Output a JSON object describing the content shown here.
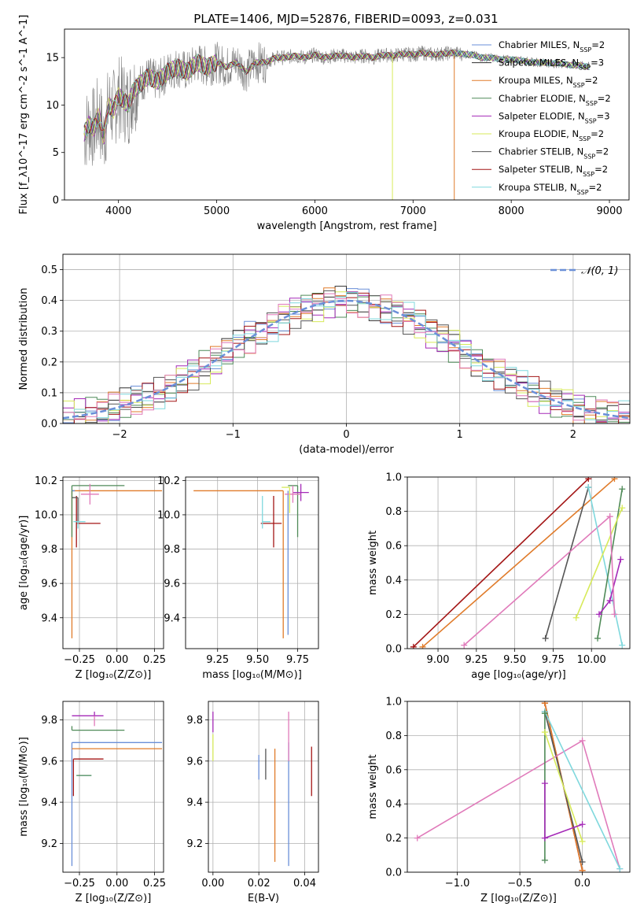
{
  "figure": {
    "title": "PLATE=1406, MJD=52876, FIBERID=0093, z=0.031"
  },
  "colors": {
    "chabrier_miles": "#6a8fd8",
    "salpeter_miles": "#2e2e2e",
    "kroupa_miles": "#e07b2a",
    "chabrier_elodie": "#4f8a58",
    "salpeter_elodie": "#a52ab8",
    "kroupa_elodie": "#d7ea5a",
    "chabrier_stelib": "#555555",
    "salpeter_stelib": "#a31515",
    "kroupa_stelib": "#7fd8dd",
    "pink": "#e07aba",
    "normal": "#6a8fd8"
  },
  "chart_data": [
    {
      "id": "spectrum",
      "type": "line",
      "xlabel": "wavelength [Angstrom, rest frame]",
      "ylabel": "Flux [f_λ10^-17 erg cm^-2 s^-1 A^-1]",
      "xlim": [
        3450,
        9200
      ],
      "ylim": [
        0,
        18
      ],
      "xticks": [
        4000,
        5000,
        6000,
        7000,
        8000,
        9000
      ],
      "yticks": [
        0,
        5,
        10,
        15
      ],
      "grid": false,
      "legend_position": "top-right",
      "legend": [
        {
          "label": "Chabrier MILES, N",
          "sub": "SSP",
          "tail": "=2",
          "color": "#6a8fd8"
        },
        {
          "label": "Salpeter MILES, N",
          "sub": "SSP",
          "tail": "=3",
          "color": "#2e2e2e"
        },
        {
          "label": "Kroupa MILES, N",
          "sub": "SSP",
          "tail": "=2",
          "color": "#e07b2a"
        },
        {
          "label": "Chabrier ELODIE, N",
          "sub": "SSP",
          "tail": "=2",
          "color": "#4f8a58"
        },
        {
          "label": "Salpeter ELODIE, N",
          "sub": "SSP",
          "tail": "=3",
          "color": "#a52ab8"
        },
        {
          "label": "Kroupa ELODIE, N",
          "sub": "SSP",
          "tail": "=2",
          "color": "#d7ea5a"
        },
        {
          "label": "Chabrier STELIB, N",
          "sub": "SSP",
          "tail": "=2",
          "color": "#555555"
        },
        {
          "label": "Salpeter STELIB, N",
          "sub": "SSP",
          "tail": "=2",
          "color": "#a31515"
        },
        {
          "label": "Kroupa STELIB, N",
          "sub": "SSP",
          "tail": "=2",
          "color": "#7fd8dd"
        }
      ],
      "data_x": [
        3650,
        3700,
        3750,
        3800,
        3850,
        3900,
        3950,
        4000,
        4050,
        4100,
        4150,
        4200,
        4300,
        4400,
        4500,
        4600,
        4700,
        4800,
        4900,
        5000,
        5100,
        5200,
        5300,
        5400,
        5500,
        5600,
        5700,
        5800,
        5900,
        6000,
        6100,
        6200,
        6300,
        6400,
        6500,
        6600,
        6700,
        6800,
        6900,
        7000,
        7100,
        7200,
        7300,
        7400,
        7500,
        7600,
        7700,
        7800,
        7900,
        8000,
        8100,
        8200,
        8300,
        8400,
        8500,
        8600,
        8700,
        8800
      ],
      "data_y": [
        7.0,
        8.0,
        7.5,
        9.0,
        6.5,
        10.0,
        9.5,
        11.0,
        10.5,
        10.0,
        11.5,
        12.0,
        13.0,
        12.5,
        13.5,
        14.0,
        13.5,
        14.5,
        14.0,
        14.5,
        14.0,
        14.5,
        13.5,
        14.5,
        14.5,
        15.0,
        15.0,
        15.2,
        15.0,
        15.3,
        15.0,
        15.2,
        15.2,
        15.0,
        15.2,
        15.0,
        15.3,
        15.2,
        15.4,
        15.3,
        15.5,
        15.3,
        15.4,
        15.5,
        15.4,
        15.3,
        15.0,
        15.0,
        14.8,
        14.8,
        14.7,
        14.5,
        14.5,
        14.4,
        14.4,
        14.2,
        14.2,
        14.0
      ]
    },
    {
      "id": "residuals",
      "type": "bar",
      "xlabel": "(data-model)/error",
      "ylabel": "Normed distribution",
      "xlim": [
        -2.5,
        2.5
      ],
      "ylim": [
        0,
        0.55
      ],
      "xticks": [
        -2,
        -1,
        0,
        1,
        2
      ],
      "xtick_labels": [
        "−2",
        "−1",
        "0",
        "1",
        "2"
      ],
      "yticks": [
        0.0,
        0.1,
        0.2,
        0.3,
        0.4,
        0.5
      ],
      "ytick_labels": [
        "0.0",
        "0.1",
        "0.2",
        "0.3",
        "0.4",
        "0.5"
      ],
      "grid": true,
      "bin_width": 0.1,
      "legend_position": "top-right",
      "legend": [
        {
          "label": "𝒩(0, 1)",
          "color": "#6a8fd8"
        }
      ],
      "series": [
        {
          "color": "#6a8fd8",
          "offset": 0.0
        },
        {
          "color": "#2e2e2e",
          "offset": 0.01
        },
        {
          "color": "#e07b2a",
          "offset": -0.01
        },
        {
          "color": "#4f8a58",
          "offset": 0.015
        },
        {
          "color": "#a52ab8",
          "offset": 0.02
        },
        {
          "color": "#d7ea5a",
          "offset": -0.02
        },
        {
          "color": "#555555",
          "offset": -0.005
        },
        {
          "color": "#a31515",
          "offset": 0.005
        },
        {
          "color": "#7fd8dd",
          "offset": -0.015
        },
        {
          "color": "#e07aba",
          "offset": 0.025
        }
      ],
      "normal_curve": {
        "mean": 0,
        "sigma": 1
      }
    },
    {
      "id": "age_vs_Z",
      "type": "scatter",
      "xlabel": "Z [log₁₀(Z/Z⊙)]",
      "ylabel": "age  [log₁₀(age/yr)]",
      "xlim": [
        -0.36,
        0.31
      ],
      "ylim": [
        9.22,
        10.22
      ],
      "xticks": [
        -0.25,
        0.0,
        0.25
      ],
      "xtick_labels": [
        "−0.25",
        "0.00",
        "0.25"
      ],
      "yticks": [
        9.4,
        9.6,
        9.8,
        10.0,
        10.2
      ],
      "ytick_labels": [
        "9.4",
        "9.6",
        "9.8",
        "10.0",
        "10.2"
      ],
      "grid": true,
      "points": [
        {
          "x": -0.3,
          "y": 10.14,
          "xerr": [
            0.0,
            0.6
          ],
          "yerr": [
            0.86,
            0.0
          ],
          "color": "#e07b2a"
        },
        {
          "x": -0.28,
          "y": 10.14,
          "xerr": [
            0.02,
            0.0
          ],
          "yerr": [
            0.0,
            0.0
          ],
          "color": "#6a8fd8"
        },
        {
          "x": -0.27,
          "y": 9.95,
          "xerr": [
            0.0,
            0.16
          ],
          "yerr": [
            0.14,
            0.16
          ],
          "color": "#a31515"
        },
        {
          "x": -0.3,
          "y": 10.17,
          "xerr": [
            0.0,
            0.35
          ],
          "yerr": [
            0.3,
            0.0
          ],
          "color": "#4f8a58"
        },
        {
          "x": -0.18,
          "y": 10.12,
          "xerr": [
            0.06,
            0.06
          ],
          "yerr": [
            0.06,
            0.06
          ],
          "color": "#e07aba"
        },
        {
          "x": -0.26,
          "y": 10.1,
          "xerr": [
            0.04,
            0.0
          ],
          "yerr": [
            0.15,
            0.0
          ],
          "color": "#555555"
        },
        {
          "x": -0.26,
          "y": 9.96,
          "xerr": [
            0.03,
            0.05
          ],
          "yerr": [
            0.04,
            0.0
          ],
          "color": "#7fd8dd"
        }
      ]
    },
    {
      "id": "age_vs_mass",
      "type": "scatter",
      "xlabel": "mass [log₁₀(M/M⊙)]",
      "ylabel": "",
      "xlim": [
        9.05,
        9.88
      ],
      "ylim": [
        9.22,
        10.22
      ],
      "xticks": [
        9.25,
        9.5,
        9.75
      ],
      "xtick_labels": [
        "9.25",
        "9.50",
        "9.75"
      ],
      "yticks": [
        9.4,
        9.6,
        9.8,
        10.0,
        10.2
      ],
      "ytick_labels": [
        "9.4",
        "9.6",
        "9.8",
        "10.0",
        "10.2"
      ],
      "grid": true,
      "points": [
        {
          "x": 9.66,
          "y": 10.14,
          "xerr": [
            0.56,
            0.0
          ],
          "yerr": [
            0.86,
            0.0
          ],
          "color": "#e07b2a"
        },
        {
          "x": 9.69,
          "y": 10.14,
          "xerr": [
            0.0,
            0.0
          ],
          "yerr": [
            0.84,
            0.0
          ],
          "color": "#6a8fd8"
        },
        {
          "x": 9.6,
          "y": 9.95,
          "xerr": [
            0.08,
            0.05
          ],
          "yerr": [
            0.14,
            0.16
          ],
          "color": "#a31515"
        },
        {
          "x": 9.75,
          "y": 10.17,
          "xerr": [
            0.06,
            0.0
          ],
          "yerr": [
            0.3,
            0.0
          ],
          "color": "#4f8a58"
        },
        {
          "x": 9.77,
          "y": 10.13,
          "xerr": [
            0.05,
            0.05
          ],
          "yerr": [
            0.05,
            0.05
          ],
          "color": "#a52ab8"
        },
        {
          "x": 9.72,
          "y": 10.12,
          "xerr": [
            0.05,
            0.05
          ],
          "yerr": [
            0.05,
            0.05
          ],
          "color": "#e07aba"
        },
        {
          "x": 9.53,
          "y": 9.96,
          "xerr": [
            0.0,
            0.05
          ],
          "yerr": [
            0.04,
            0.15
          ],
          "color": "#7fd8dd"
        },
        {
          "x": 9.7,
          "y": 10.16,
          "xerr": [
            0.05,
            0.0
          ],
          "yerr": [
            0.15,
            0.0
          ],
          "color": "#d7ea5a"
        }
      ]
    },
    {
      "id": "weight_vs_age",
      "type": "line",
      "xlabel": "age  [log₁₀(age/yr)]",
      "ylabel": "mass weight",
      "xlim": [
        8.8,
        10.25
      ],
      "ylim": [
        0,
        1
      ],
      "xticks": [
        9.0,
        9.25,
        9.5,
        9.75,
        10.0
      ],
      "xtick_labels": [
        "9.00",
        "9.25",
        "9.50",
        "9.75",
        "10.00"
      ],
      "yticks": [
        0.0,
        0.2,
        0.4,
        0.6,
        0.8,
        1.0
      ],
      "ytick_labels": [
        "0.0",
        "0.2",
        "0.4",
        "0.6",
        "0.8",
        "1.0"
      ],
      "grid": true,
      "series": [
        {
          "color": "#a31515",
          "x": [
            8.84,
            9.98
          ],
          "y": [
            0.01,
            0.99
          ]
        },
        {
          "color": "#e07b2a",
          "x": [
            8.9,
            10.15
          ],
          "y": [
            0.01,
            0.99
          ]
        },
        {
          "color": "#555555",
          "x": [
            9.7,
            9.98
          ],
          "y": [
            0.06,
            0.94
          ]
        },
        {
          "color": "#e07aba",
          "x": [
            9.17,
            10.12
          ],
          "y": [
            0.02,
            0.77
          ]
        },
        {
          "color": "#7fd8dd",
          "x": [
            9.98,
            10.2
          ],
          "y": [
            0.94,
            0.02
          ]
        },
        {
          "color": "#4f8a58",
          "x": [
            10.04,
            10.2
          ],
          "y": [
            0.06,
            0.93
          ]
        },
        {
          "color": "#d7ea5a",
          "x": [
            9.9,
            10.2
          ],
          "y": [
            0.18,
            0.82
          ]
        },
        {
          "color": "#a52ab8",
          "x": [
            10.05,
            10.12,
            10.19
          ],
          "y": [
            0.2,
            0.28,
            0.52
          ]
        },
        {
          "color": "#e07aba",
          "x": [
            10.12,
            10.15
          ],
          "y": [
            0.77,
            0.2
          ]
        }
      ]
    },
    {
      "id": "mass_vs_Z",
      "type": "scatter",
      "xlabel": "Z [log₁₀(Z/Z⊙)]",
      "ylabel": "mass [log₁₀(M/M⊙)]",
      "xlim": [
        -0.36,
        0.31
      ],
      "ylim": [
        9.06,
        9.89
      ],
      "xticks": [
        -0.25,
        0.0,
        0.25
      ],
      "xtick_labels": [
        "−0.25",
        "0.00",
        "0.25"
      ],
      "yticks": [
        9.2,
        9.4,
        9.6,
        9.8
      ],
      "ytick_labels": [
        "9.2",
        "9.4",
        "9.6",
        "9.8"
      ],
      "grid": true,
      "points": [
        {
          "x": -0.3,
          "y": 9.69,
          "xerr": [
            0.0,
            0.6
          ],
          "yerr": [
            0.6,
            0.0
          ],
          "color": "#6a8fd8"
        },
        {
          "x": -0.3,
          "y": 9.66,
          "xerr": [
            0.0,
            0.6
          ],
          "yerr": [
            0.0,
            0.0
          ],
          "color": "#e07b2a"
        },
        {
          "x": -0.29,
          "y": 9.61,
          "xerr": [
            0.0,
            0.2
          ],
          "yerr": [
            0.18,
            0.0
          ],
          "color": "#a31515"
        },
        {
          "x": -0.3,
          "y": 9.75,
          "xerr": [
            0.0,
            0.35
          ],
          "yerr": [
            0.0,
            0.02
          ],
          "color": "#4f8a58"
        },
        {
          "x": -0.15,
          "y": 9.82,
          "xerr": [
            0.15,
            0.06
          ],
          "yerr": [
            0.0,
            0.02
          ],
          "color": "#a52ab8"
        },
        {
          "x": -0.15,
          "y": 9.77,
          "xerr": [
            0.0,
            0.0
          ],
          "yerr": [
            0.0,
            0.05
          ],
          "color": "#e07aba"
        },
        {
          "x": -0.27,
          "y": 9.53,
          "xerr": [
            0.0,
            0.1
          ],
          "yerr": [
            0.0,
            0.0
          ],
          "color": "#7fd8dd"
        },
        {
          "x": -0.27,
          "y": 9.53,
          "xerr": [
            0.0,
            0.1
          ],
          "yerr": [
            0.0,
            0.0
          ],
          "color": "#4f8a58"
        }
      ]
    },
    {
      "id": "mass_vs_ebv",
      "type": "scatter",
      "xlabel": "E(B-V)",
      "ylabel": "",
      "xlim": [
        -0.002,
        0.046
      ],
      "ylim": [
        9.06,
        9.89
      ],
      "xticks": [
        0.0,
        0.02,
        0.04
      ],
      "xtick_labels": [
        "0.00",
        "0.02",
        "0.04"
      ],
      "yticks": [
        9.2,
        9.4,
        9.6,
        9.8
      ],
      "ytick_labels": [
        "9.2",
        "9.4",
        "9.6",
        "9.8"
      ],
      "grid": true,
      "points": [
        {
          "x": 0.0,
          "y": 9.79,
          "xerr": [
            0,
            0
          ],
          "yerr": [
            0.05,
            0.05
          ],
          "color": "#a52ab8"
        },
        {
          "x": 0.0,
          "y": 9.66,
          "xerr": [
            0,
            0
          ],
          "yerr": [
            0.06,
            0.07
          ],
          "color": "#d7ea5a"
        },
        {
          "x": 0.02,
          "y": 9.57,
          "xerr": [
            0,
            0
          ],
          "yerr": [
            0.06,
            0.06
          ],
          "color": "#6a8fd8"
        },
        {
          "x": 0.023,
          "y": 9.58,
          "xerr": [
            0,
            0
          ],
          "yerr": [
            0.07,
            0.08
          ],
          "color": "#555555"
        },
        {
          "x": 0.027,
          "y": 9.39,
          "xerr": [
            0,
            0
          ],
          "yerr": [
            0.28,
            0.27
          ],
          "color": "#e07b2a"
        },
        {
          "x": 0.033,
          "y": 9.39,
          "xerr": [
            0,
            0
          ],
          "yerr": [
            0.3,
            0.3
          ],
          "color": "#6a8fd8"
        },
        {
          "x": 0.033,
          "y": 9.72,
          "xerr": [
            0,
            0
          ],
          "yerr": [
            0.12,
            0.12
          ],
          "color": "#e07aba"
        },
        {
          "x": 0.043,
          "y": 9.55,
          "xerr": [
            0,
            0
          ],
          "yerr": [
            0.12,
            0.12
          ],
          "color": "#a31515"
        }
      ]
    },
    {
      "id": "weight_vs_Z",
      "type": "line",
      "xlabel": "Z [log₁₀(Z/Z⊙)]",
      "ylabel": "mass weight",
      "xlim": [
        -1.4,
        0.38
      ],
      "ylim": [
        0,
        1
      ],
      "xticks": [
        -1.0,
        -0.5,
        0.0
      ],
      "xtick_labels": [
        "−1.0",
        "−0.5",
        "0.0"
      ],
      "yticks": [
        0.0,
        0.2,
        0.4,
        0.6,
        0.8,
        1.0
      ],
      "ytick_labels": [
        "0.0",
        "0.2",
        "0.4",
        "0.6",
        "0.8",
        "1.0"
      ],
      "grid": true,
      "series": [
        {
          "color": "#a31515",
          "x": [
            -0.3,
            0.0
          ],
          "y": [
            0.99,
            0.01
          ]
        },
        {
          "color": "#e07b2a",
          "x": [
            -0.3,
            0.0
          ],
          "y": [
            0.99,
            0.01
          ]
        },
        {
          "color": "#555555",
          "x": [
            -0.3,
            0.0
          ],
          "y": [
            0.94,
            0.06
          ]
        },
        {
          "color": "#e07aba",
          "x": [
            -1.32,
            0.0,
            0.3
          ],
          "y": [
            0.2,
            0.77,
            0.02
          ]
        },
        {
          "color": "#7fd8dd",
          "x": [
            -0.3,
            0.3
          ],
          "y": [
            0.94,
            0.02
          ]
        },
        {
          "color": "#4f8a58",
          "x": [
            -0.3,
            -0.3
          ],
          "y": [
            0.07,
            0.93
          ]
        },
        {
          "color": "#d7ea5a",
          "x": [
            -0.3,
            0.0
          ],
          "y": [
            0.82,
            0.18
          ]
        },
        {
          "color": "#a52ab8",
          "x": [
            -0.3,
            -0.3,
            0.0
          ],
          "y": [
            0.52,
            0.2,
            0.28
          ]
        }
      ]
    }
  ]
}
